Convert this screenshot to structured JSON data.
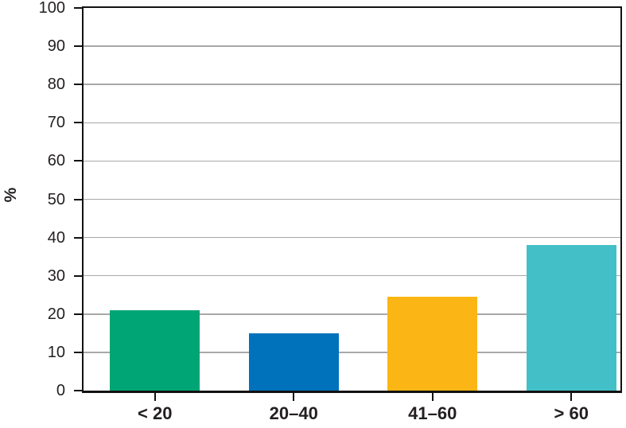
{
  "chart_data": {
    "type": "bar",
    "title": "",
    "categories": [
      "< 20",
      "20–40",
      "41–60",
      "> 60"
    ],
    "values": [
      21,
      15,
      24.5,
      38
    ],
    "bar_colors": [
      "#00a575",
      "#0072bc",
      "#fbb615",
      "#43bfc7"
    ],
    "xlabel": "",
    "ylabel": "%",
    "ylim": [
      0,
      100
    ],
    "yticks": [
      0,
      10,
      20,
      30,
      40,
      50,
      60,
      70,
      80,
      90,
      100
    ],
    "grid": true,
    "legend_position": "none",
    "gridline_color": "#a8a8a8",
    "axis_color": "#111111",
    "text_color": "#231f20",
    "background_color": "#ffffff"
  }
}
